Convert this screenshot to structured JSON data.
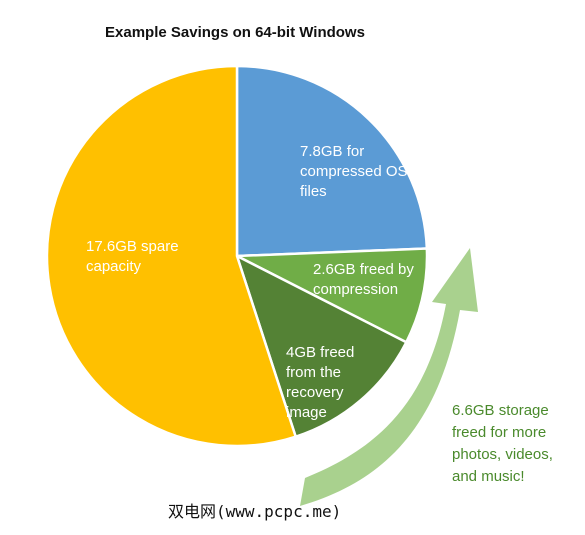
{
  "chart_data": {
    "type": "pie",
    "title": "Example Savings on 64-bit Windows",
    "unit": "GB",
    "slices": [
      {
        "label": "7.8GB for compressed OS files",
        "value": 7.8,
        "color": "#5b9bd5"
      },
      {
        "label": "2.6GB freed by compression",
        "value": 2.6,
        "color": "#70ad47"
      },
      {
        "label": "4GB freed from the recovery image",
        "value": 4.0,
        "color": "#548235"
      },
      {
        "label": "17.6GB spare capacity",
        "value": 17.6,
        "color": "#ffc000"
      }
    ],
    "annotation": "6.6GB storage freed for more photos, videos, and music!",
    "arrow_color": "#a9d18e"
  },
  "watermark": "双电网(www.pcpc.me)"
}
